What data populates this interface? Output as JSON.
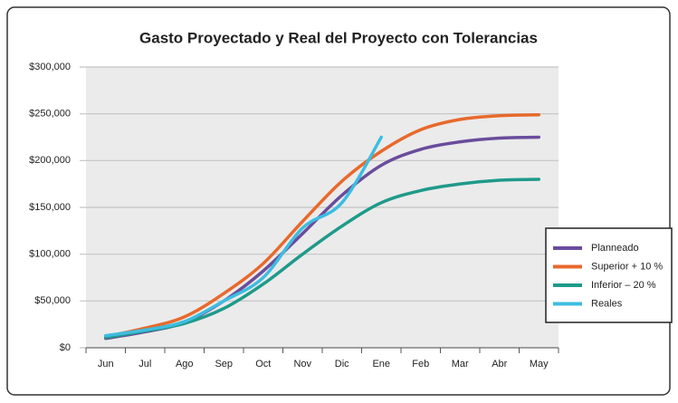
{
  "chart_data": {
    "type": "line",
    "title": "Gasto Proyectado y Real del Proyecto con Tolerancias",
    "categories": [
      "Jun",
      "Jul",
      "Ago",
      "Sep",
      "Oct",
      "Nov",
      "Dic",
      "Ene",
      "Feb",
      "Mar",
      "Abr",
      "May"
    ],
    "series": [
      {
        "name": "Planneado",
        "color": "#6a4c9c",
        "values": [
          10000,
          17000,
          27000,
          50000,
          82000,
          122000,
          163000,
          195000,
          212000,
          220000,
          224000,
          225000
        ]
      },
      {
        "name": "Superior + 10 %",
        "color": "#e8692c",
        "values": [
          12000,
          21000,
          33000,
          58000,
          90000,
          135000,
          178000,
          210000,
          233000,
          244000,
          248000,
          249000
        ]
      },
      {
        "name": "Inferior – 20 %",
        "color": "#1f9a8a",
        "values": [
          11000,
          18000,
          26000,
          42000,
          68000,
          100000,
          130000,
          155000,
          168000,
          175000,
          179000,
          180000
        ]
      },
      {
        "name": "Reales",
        "color": "#3dbde0",
        "values": [
          13000,
          19000,
          28000,
          50000,
          75000,
          128000,
          155000,
          225000,
          null,
          null,
          null,
          null
        ]
      }
    ],
    "ylim": [
      0,
      300000
    ],
    "yticks": [
      {
        "value": 0,
        "label": "$0"
      },
      {
        "value": 50000,
        "label": "$50,000"
      },
      {
        "value": 100000,
        "label": "$100,000"
      },
      {
        "value": 150000,
        "label": "$150,000"
      },
      {
        "value": 200000,
        "label": "$200,000"
      },
      {
        "value": 250000,
        "label": "$250,000"
      },
      {
        "value": 300000,
        "label": "$300,000"
      }
    ],
    "grid": true,
    "legend": "right"
  }
}
